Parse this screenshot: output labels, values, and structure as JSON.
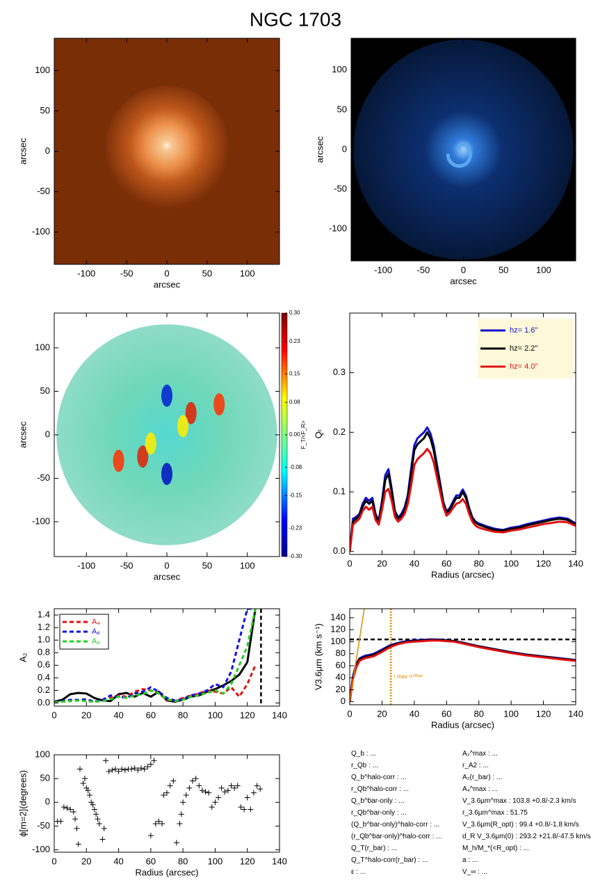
{
  "title": "NGC 1703",
  "chart_data": [
    {
      "type": "image",
      "colormap": "orange",
      "xlabel": "arcsec",
      "ylabel": "arcsec",
      "xlim": [
        -140,
        140
      ],
      "ylim": [
        -140,
        140
      ],
      "xticks": [
        -100,
        -50,
        0,
        50,
        100
      ],
      "yticks": [
        -100,
        -50,
        0,
        50,
        100
      ]
    },
    {
      "type": "image",
      "colormap": "blue",
      "xlabel": "arcsec",
      "ylabel": "arcsec",
      "xlim": [
        -140,
        140
      ],
      "ylim": [
        -140,
        140
      ],
      "xticks": [
        -100,
        -50,
        0,
        50,
        100
      ],
      "yticks": [
        -100,
        -50,
        0,
        50,
        100
      ]
    },
    {
      "type": "image",
      "colormap": "jet",
      "xlabel": "arcsec",
      "ylabel": "arcsec",
      "xlim": [
        -140,
        140
      ],
      "ylim": [
        -140,
        140
      ],
      "xticks": [
        -100,
        -50,
        0,
        50,
        100
      ],
      "yticks": [
        -100,
        -50,
        0,
        50,
        100
      ],
      "colorbar": {
        "label": "F_T/<F_R>",
        "lim": [
          -0.3,
          0.3
        ],
        "ticks": [
          {
            "value": 0.3,
            "label": "0.30"
          },
          0.23,
          0.15,
          0.08,
          {
            "value": 0,
            "label": "0.00"
          },
          -0.08,
          -0.15,
          -0.23,
          {
            "value": -0.3,
            "label": "-0.30"
          }
        ]
      }
    },
    {
      "type": "line",
      "xlabel": "Radius (arcsec)",
      "ylabel": "Qₜ",
      "xlim": [
        0,
        140
      ],
      "ylim": [
        -0.005,
        0.4
      ],
      "xticks": [
        0,
        20,
        40,
        60,
        80,
        100,
        120,
        140
      ],
      "yticks": [
        {
          "value": 0,
          "label": "0.0"
        },
        0.1,
        0.2,
        0.3
      ],
      "legend": "top-right",
      "legend_background": "#fdf8d8",
      "line_width": 3,
      "x": [
        0,
        2,
        4,
        6,
        8,
        10,
        12,
        14,
        16,
        18,
        20,
        22,
        24,
        26,
        28,
        30,
        32,
        34,
        36,
        38,
        40,
        42,
        44,
        46,
        48,
        50,
        52,
        54,
        56,
        58,
        60,
        62,
        64,
        66,
        68,
        70,
        72,
        74,
        76,
        78,
        80,
        85,
        90,
        95,
        100,
        105,
        110,
        115,
        120,
        125,
        130,
        135,
        140
      ],
      "series": [
        {
          "name": "hz=   1.6''",
          "color": "#1010d0",
          "values": [
            0,
            0.055,
            0.058,
            0.063,
            0.08,
            0.09,
            0.085,
            0.09,
            0.063,
            0.052,
            0.085,
            0.128,
            0.138,
            0.105,
            0.068,
            0.057,
            0.063,
            0.074,
            0.095,
            0.138,
            0.178,
            0.19,
            0.195,
            0.2,
            0.208,
            0.198,
            0.178,
            0.146,
            0.115,
            0.083,
            0.067,
            0.073,
            0.084,
            0.094,
            0.094,
            0.104,
            0.094,
            0.073,
            0.057,
            0.05,
            0.047,
            0.042,
            0.038,
            0.036,
            0.04,
            0.042,
            0.046,
            0.049,
            0.052,
            0.055,
            0.057,
            0.055,
            0.047
          ]
        },
        {
          "name": "hz=   2.2''",
          "color": "#000000",
          "values": [
            0,
            0.05,
            0.055,
            0.06,
            0.075,
            0.085,
            0.08,
            0.085,
            0.06,
            0.05,
            0.08,
            0.12,
            0.13,
            0.1,
            0.065,
            0.055,
            0.06,
            0.07,
            0.09,
            0.13,
            0.17,
            0.18,
            0.185,
            0.19,
            0.2,
            0.19,
            0.17,
            0.14,
            0.11,
            0.08,
            0.065,
            0.07,
            0.08,
            0.09,
            0.09,
            0.1,
            0.09,
            0.07,
            0.055,
            0.048,
            0.045,
            0.04,
            0.036,
            0.035,
            0.038,
            0.04,
            0.044,
            0.047,
            0.05,
            0.053,
            0.055,
            0.053,
            0.045
          ]
        },
        {
          "name": "hz=   4.0''",
          "color": "#e01010",
          "values": [
            0,
            0.045,
            0.05,
            0.055,
            0.068,
            0.075,
            0.07,
            0.075,
            0.053,
            0.045,
            0.07,
            0.1,
            0.105,
            0.085,
            0.058,
            0.05,
            0.055,
            0.063,
            0.08,
            0.11,
            0.145,
            0.155,
            0.16,
            0.165,
            0.172,
            0.165,
            0.15,
            0.125,
            0.1,
            0.075,
            0.06,
            0.065,
            0.073,
            0.08,
            0.082,
            0.088,
            0.08,
            0.063,
            0.05,
            0.043,
            0.04,
            0.036,
            0.033,
            0.032,
            0.035,
            0.037,
            0.04,
            0.043,
            0.046,
            0.048,
            0.05,
            0.049,
            0.043
          ]
        }
      ]
    },
    {
      "type": "line",
      "xlabel": "",
      "ylabel": "A₂",
      "xlim": [
        0,
        140
      ],
      "ylim": [
        -0.05,
        1.5
      ],
      "xticks": [
        0,
        20,
        40,
        60,
        80,
        100,
        120,
        140
      ],
      "yticks": [
        {
          "value": 0,
          "label": "0.0"
        },
        0.2,
        0.4,
        0.6,
        0.8,
        {
          "value": 1.0,
          "label": "1.0"
        },
        1.2,
        1.4
      ],
      "legend": "top-left",
      "legend_background": "#ffffff",
      "line_width": 3,
      "x": [
        0,
        5,
        10,
        15,
        20,
        25,
        30,
        35,
        40,
        45,
        50,
        55,
        60,
        65,
        70,
        75,
        80,
        85,
        90,
        95,
        100,
        105,
        110,
        115,
        120,
        125
      ],
      "vlines": [
        {
          "x": 128.5,
          "color": "#000000",
          "style": "dashed"
        }
      ],
      "series": [
        {
          "color": "#000000",
          "values": [
            0.02,
            0.05,
            0.14,
            0.16,
            0.15,
            0.08,
            0.04,
            0.03,
            0.14,
            0.16,
            0.1,
            0.16,
            0.1,
            0.18,
            0.04,
            0.02,
            0.05,
            0.1,
            0.12,
            0.18,
            0.22,
            0.28,
            0.35,
            0.45,
            0.65,
            1.5
          ]
        },
        {
          "name": "A₄",
          "color": "#e01010",
          "dashed": true,
          "values": [
            0.01,
            0.02,
            0.04,
            0.05,
            0.03,
            0.02,
            0.04,
            0.08,
            0.12,
            0.1,
            0.18,
            0.22,
            0.2,
            0.15,
            0.05,
            0.03,
            0.08,
            0.12,
            0.15,
            0.2,
            0.18,
            0.15,
            0.25,
            0.1,
            0.3,
            0.6
          ]
        },
        {
          "name": "A₆",
          "color": "#1010e0",
          "dashed": true,
          "values": [
            0.01,
            0.03,
            0.05,
            0.05,
            0.06,
            0.02,
            0.05,
            0.12,
            0.1,
            0.08,
            0.15,
            0.18,
            0.25,
            0.18,
            0.08,
            0.04,
            0.06,
            0.12,
            0.15,
            0.2,
            0.3,
            0.25,
            0.5,
            1.0,
            1.5,
            1.5
          ]
        },
        {
          "name": "A₈",
          "color": "#20d020",
          "dashed": true,
          "values": [
            0.01,
            0.02,
            0.03,
            0.04,
            0.03,
            0.02,
            0.03,
            0.06,
            0.1,
            0.08,
            0.12,
            0.14,
            0.2,
            0.15,
            0.06,
            0.03,
            0.05,
            0.1,
            0.12,
            0.16,
            0.2,
            0.15,
            0.3,
            0.6,
            0.9,
            1.5
          ]
        }
      ]
    },
    {
      "type": "line",
      "xlabel": "Radius (arcsec)",
      "ylabel": "V3.6μm (km s⁻¹)",
      "xlim": [
        0,
        140
      ],
      "ylim": [
        -5,
        155
      ],
      "xticks": [
        0,
        20,
        40,
        60,
        80,
        100,
        120,
        140
      ],
      "yticks": [
        0,
        20,
        40,
        60,
        80,
        100,
        120,
        140
      ],
      "line_width": 3,
      "x": [
        0,
        2,
        4,
        6,
        8,
        10,
        12,
        15,
        20,
        25,
        30,
        35,
        40,
        45,
        50,
        55,
        60,
        65,
        70,
        80,
        90,
        100,
        110,
        120,
        130,
        140
      ],
      "hlines": [
        {
          "y": 103.8,
          "color": "#000000",
          "style": "dashed"
        }
      ],
      "vlines": [
        {
          "x": 25.5,
          "color": "#e08a00",
          "style": "dotted",
          "label": "r max ¹/⁴ᴿᵒᵖᵗ"
        }
      ],
      "series": [
        {
          "color": "#1010d0",
          "values": [
            0,
            42,
            63,
            72,
            75,
            77,
            78,
            80,
            87,
            94,
            98,
            101,
            102,
            103,
            103.8,
            103.5,
            102.5,
            101,
            98.5,
            92.5,
            87.5,
            82.5,
            78.5,
            75.5,
            72.5,
            69.5
          ]
        },
        {
          "color": "#000000",
          "values": [
            0,
            40,
            60,
            70,
            73,
            75,
            76,
            78,
            85,
            93,
            97,
            100,
            101,
            102,
            103,
            103,
            102,
            101,
            98,
            92,
            87,
            82,
            78,
            75,
            72,
            69
          ]
        },
        {
          "color": "#e01010",
          "values": [
            0,
            38,
            57,
            68,
            71,
            73,
            74,
            76,
            83,
            91,
            96,
            99,
            100,
            101,
            102,
            102,
            101,
            100,
            97,
            91,
            86,
            81,
            77,
            74,
            71,
            68
          ]
        },
        {
          "color": "#e08a00",
          "width": 1.5,
          "x": [
            0,
            9
          ],
          "values": [
            0,
            155
          ]
        }
      ]
    },
    {
      "type": "scatter",
      "xlabel": "Radius (arcsec)",
      "ylabel": "ϕ[m=2](degrees)",
      "xlim": [
        0,
        140
      ],
      "ylim": [
        -105,
        100
      ],
      "xticks": [
        0,
        20,
        40,
        60,
        80,
        100,
        120,
        140
      ],
      "yticks": [
        -100,
        -50,
        0,
        50,
        100
      ],
      "color": "#000000",
      "x": [
        2,
        4,
        6,
        8,
        10,
        12,
        13,
        14,
        15,
        16,
        18,
        19,
        20,
        21,
        22,
        23,
        24,
        25,
        26,
        27,
        28,
        30,
        31,
        32,
        34,
        36,
        38,
        40,
        42,
        44,
        46,
        48,
        50,
        52,
        54,
        56,
        58,
        60,
        62,
        60,
        63,
        65,
        67,
        68,
        70,
        72,
        74,
        76,
        78,
        79,
        80,
        82,
        84,
        86,
        88,
        90,
        92,
        94,
        96,
        98,
        100,
        102,
        104,
        106,
        108,
        110,
        112,
        114,
        116,
        118,
        120,
        122,
        124,
        126,
        128
      ],
      "values": [
        -40,
        -40,
        -10,
        -12,
        -15,
        -20,
        -35,
        -55,
        -88,
        70,
        40,
        50,
        30,
        25,
        15,
        0,
        -5,
        -15,
        -25,
        -35,
        -45,
        -78,
        -55,
        88,
        65,
        68,
        70,
        65,
        70,
        68,
        70,
        70,
        72,
        68,
        72,
        70,
        75,
        80,
        88,
        -70,
        -45,
        -40,
        -45,
        15,
        20,
        35,
        45,
        -85,
        -45,
        -25,
        0,
        15,
        30,
        45,
        50,
        35,
        25,
        22,
        20,
        -10,
        0,
        10,
        30,
        22,
        25,
        35,
        30,
        35,
        -10,
        -15,
        10,
        -15,
        20,
        35,
        28
      ]
    }
  ],
  "parameters": {
    "left": [
      "Q_b : ...",
      "r_Qb : ...",
      "Q_b^halo-corr : ...",
      "r_Qb^halo-corr : ...",
      "Q_b^bar-only : ...",
      "r_Qb^bar-only : ...",
      "(Q_b^bar-only)^halo-corr : ...",
      "(r_Qb^bar-only)^halo-corr : ...",
      "Q_T(r_bar) : ...",
      "Q_T^halo-corr(r_bar) : ...",
      "ε : ..."
    ],
    "right": [
      "A₂^max : ...",
      "r_A2 : ...",
      "A₂(r_bar) : ...",
      "A₄^max : ...",
      "V_3.6μm^max :  103.8 +0.8/-2.3 km/s",
      "r_3.6μm^max :  51.75",
      "V_3.6μm(R_opt) :  99.4 +0.8/-1.8 km/s",
      "d_R V_3.6μm(0) :  293.2 +21.8/-47.5 km/s/kpc",
      "M_h/M_*(<R_opt) : ...",
      "a : ...",
      "V_∞ : ..."
    ]
  }
}
